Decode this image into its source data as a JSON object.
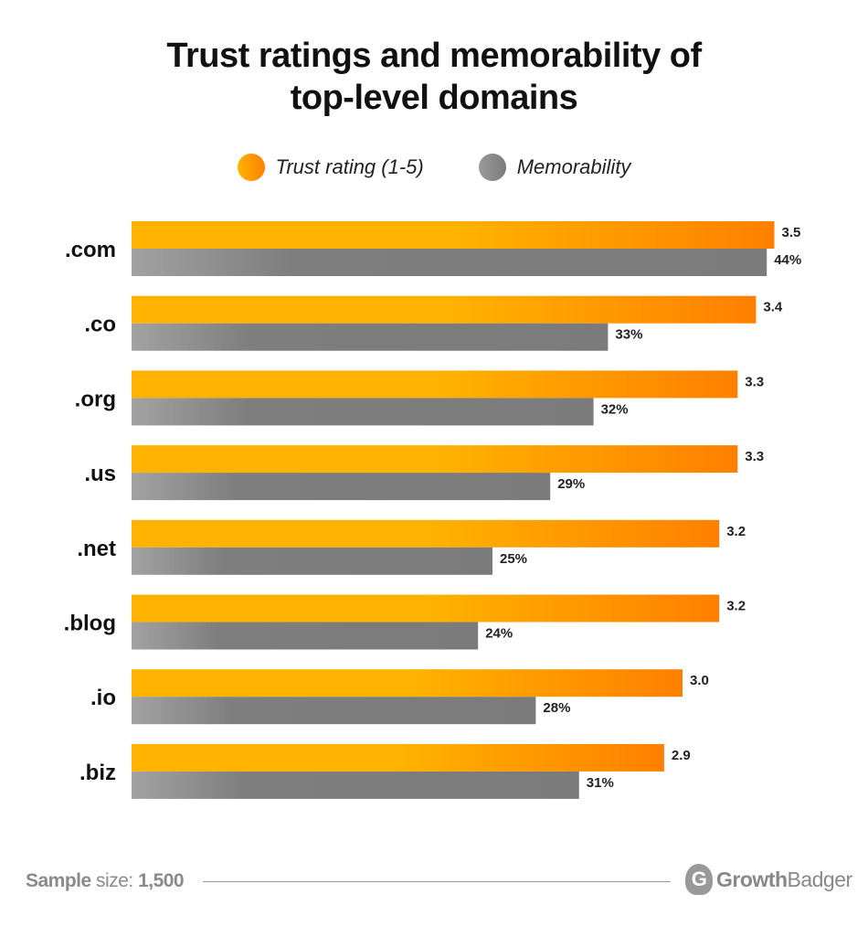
{
  "chart_data": {
    "type": "bar",
    "orientation": "horizontal",
    "title_lines": [
      "Trust ratings and memorability of",
      "top-level domains"
    ],
    "categories": [
      ".com",
      ".co",
      ".org",
      ".us",
      ".net",
      ".blog",
      ".io",
      ".biz"
    ],
    "series": [
      {
        "name": "Trust rating (1-5)",
        "values": [
          3.5,
          3.4,
          3.3,
          3.3,
          3.2,
          3.2,
          3.0,
          2.9
        ],
        "labels": [
          "3.5",
          "3.4",
          "3.3",
          "3.3",
          "3.2",
          "3.2",
          "3.0",
          "2.9"
        ],
        "color": "#ffb300",
        "color_end": "#ff8000"
      },
      {
        "name": "Memorability",
        "values": [
          44,
          33,
          32,
          29,
          25,
          24,
          28,
          31
        ],
        "labels": [
          "44%",
          "33%",
          "32%",
          "29%",
          "25%",
          "24%",
          "28%",
          "31%"
        ],
        "color": "#9a9a9a",
        "color_end": "#7b7b7b"
      }
    ],
    "legend_position": "top",
    "grid": false
  },
  "footer": {
    "sample_label_bold": "Sample",
    "sample_label": " size: ",
    "sample_value": "1,500"
  },
  "brand": {
    "part1": "Growth",
    "part2": "Badger",
    "logo_glyph": "G"
  }
}
